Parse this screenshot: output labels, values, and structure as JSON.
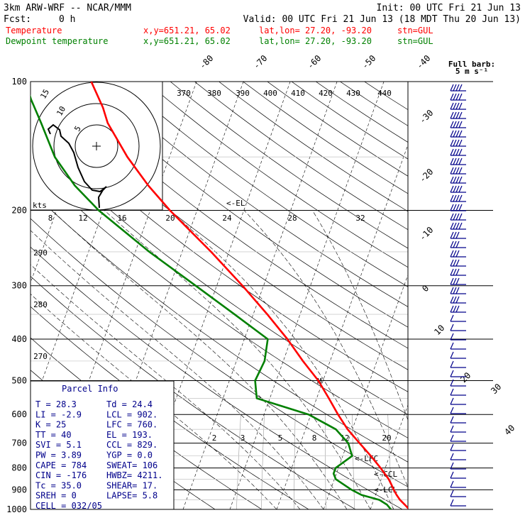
{
  "header": {
    "model": "3km ARW-WRF -- NCAR/MMM",
    "init": "Init: 00 UTC Fri 21 Jun 13",
    "fcst_label": "Fcst:",
    "fcst_value": "0 h",
    "valid": "Valid: 00 UTC Fri 21 Jun 13 (18 MDT Thu 20 Jun 13)",
    "temp_label": "Temperature",
    "dew_label": "Dewpoint temperature",
    "xy": "x,y=651.21, 65.02",
    "latlon": "lat,lon= 27.20, -93.20",
    "stn": "stn=GUL"
  },
  "colors": {
    "temperature": "#ff0000",
    "dewpoint": "#008000",
    "barbs": "#00008b",
    "hodograph": "#000000"
  },
  "chart_data": {
    "type": "line",
    "title": "",
    "ylabel": "",
    "xlabel": "",
    "y_scale": "log-pressure",
    "ylim": [
      1000,
      100
    ],
    "pressure_ticks": [
      "100",
      "200",
      "300",
      "400",
      "500",
      "600",
      "700",
      "800",
      "900",
      "1000"
    ],
    "isotherm_labels": [
      "-80",
      "-70",
      "-60",
      "-50",
      "-40",
      "-30",
      "-20",
      "-10",
      "0",
      "10",
      "20",
      "30",
      "40"
    ],
    "theta_labels": [
      "370",
      "380",
      "390",
      "400",
      "410",
      "420",
      "430",
      "440"
    ],
    "theta_left_labels": [
      "290",
      "280",
      "270"
    ],
    "mixing_ratio_labels": [
      "8",
      "12",
      "16",
      "20",
      "24",
      "28",
      "32"
    ],
    "mixing_ratio_low_labels": [
      "2",
      "3",
      "5",
      "8",
      "12",
      "20"
    ],
    "series": [
      {
        "name": "Temperature",
        "key": "temp",
        "points": [
          [
            1000,
            28.3
          ],
          [
            975,
            27.0
          ],
          [
            950,
            25.6
          ],
          [
            925,
            24.5
          ],
          [
            900,
            23.5
          ],
          [
            875,
            22.6
          ],
          [
            850,
            21.6
          ],
          [
            800,
            19.0
          ],
          [
            750,
            16.0
          ],
          [
            700,
            12.6
          ],
          [
            650,
            9.0
          ],
          [
            600,
            5.8
          ],
          [
            550,
            2.6
          ],
          [
            500,
            -1.0
          ],
          [
            450,
            -5.8
          ],
          [
            400,
            -10.8
          ],
          [
            350,
            -17.0
          ],
          [
            300,
            -24.5
          ],
          [
            250,
            -33.8
          ],
          [
            200,
            -45.8
          ],
          [
            175,
            -52.3
          ],
          [
            150,
            -59.0
          ],
          [
            125,
            -65.8
          ],
          [
            115,
            -68.0
          ],
          [
            100,
            -72.5
          ]
        ]
      },
      {
        "name": "Dewpoint temperature",
        "key": "dew",
        "points": [
          [
            1000,
            24.4
          ],
          [
            975,
            23.2
          ],
          [
            950,
            21.2
          ],
          [
            925,
            17.0
          ],
          [
            900,
            14.5
          ],
          [
            850,
            10.3
          ],
          [
            825,
            9.4
          ],
          [
            800,
            9.4
          ],
          [
            750,
            12.0
          ],
          [
            700,
            10.2
          ],
          [
            650,
            6.5
          ],
          [
            600,
            -0.5
          ],
          [
            550,
            -12.8
          ],
          [
            500,
            -14.5
          ],
          [
            450,
            -14.0
          ],
          [
            400,
            -15.0
          ],
          [
            350,
            -24.0
          ],
          [
            300,
            -34.5
          ],
          [
            250,
            -47.0
          ],
          [
            200,
            -61.0
          ],
          [
            175,
            -68.0
          ],
          [
            150,
            -74.5
          ],
          [
            125,
            -80.0
          ],
          [
            110,
            -84.0
          ],
          [
            100,
            -86.5
          ]
        ]
      }
    ]
  },
  "markers": {
    "el": "<-EL",
    "m": "M",
    "lfc": "<-LFC",
    "ccl": "<-CCL",
    "lcl": "<-LCL"
  },
  "hodograph": {
    "ring_labels": [
      "5",
      "10",
      "15"
    ],
    "units": "kts"
  },
  "barbs": {
    "legend_title": "Full barb:",
    "legend_value": "5 m s⁻¹"
  },
  "parcel_info": {
    "title": "Parcel Info",
    "rows": [
      [
        "T  =     28.3",
        "Td =   24.4"
      ],
      [
        "LI =     -2.9",
        "LCL =  902."
      ],
      [
        "K  =      25",
        "LFC =  760."
      ],
      [
        "TT =      40",
        "EL  =  193."
      ],
      [
        "SVI =     5.1",
        "CCL =  829."
      ],
      [
        "PW =     3.89",
        "YGP =   0.0"
      ],
      [
        "CAPE =    784",
        "SWEAT=  106"
      ],
      [
        "CIN =    -176",
        "HWBZ= 4211."
      ],
      [
        "Tc  =    35.0",
        "SHEAR=  17."
      ],
      [
        "SREH =      0",
        "LAPSE=  5.8"
      ],
      [
        "CELL = 032/05",
        ""
      ]
    ]
  }
}
